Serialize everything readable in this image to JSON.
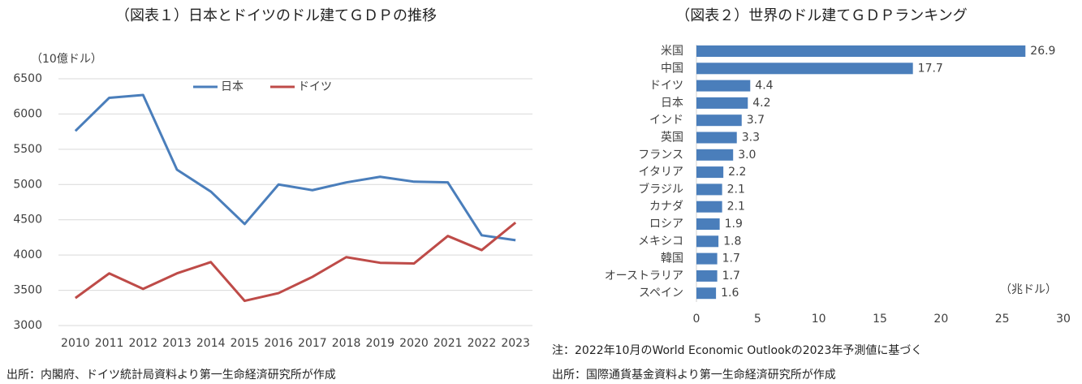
{
  "chart_data": [
    {
      "type": "line",
      "title": "（図表１）日本とドイツのドル建てＧＤＰの推移",
      "y_label": "（10億ドル）",
      "categories": [
        "2010",
        "2011",
        "2012",
        "2013",
        "2014",
        "2015",
        "2016",
        "2017",
        "2018",
        "2019",
        "2020",
        "2021",
        "2022",
        "2023"
      ],
      "series": [
        {
          "name": "日本",
          "color": "#4a7ebb",
          "values": [
            5760,
            6230,
            6270,
            5210,
            4900,
            4440,
            5000,
            4920,
            5030,
            5110,
            5040,
            5030,
            4280,
            4210
          ]
        },
        {
          "name": "ドイツ",
          "color": "#be4b48",
          "values": [
            3390,
            3740,
            3520,
            3740,
            3900,
            3350,
            3460,
            3690,
            3970,
            3890,
            3880,
            4270,
            4070,
            4460
          ]
        }
      ],
      "ylim": [
        3000,
        6500
      ],
      "yticks": [
        3000,
        3500,
        4000,
        4500,
        5000,
        5500,
        6000,
        6500
      ],
      "grid": true,
      "legend": "top",
      "source": "出所：内閣府、ドイツ統計局資料より第一生命経済研究所が作成"
    },
    {
      "type": "hbar",
      "title": "（図表２）世界のドル建てＧＤＰランキング",
      "x_label": "（兆ドル）",
      "categories": [
        "米国",
        "中国",
        "ドイツ",
        "日本",
        "インド",
        "英国",
        "フランス",
        "イタリア",
        "ブラジル",
        "カナダ",
        "ロシア",
        "メキシコ",
        "韓国",
        "オーストラリア",
        "スペイン"
      ],
      "values": [
        26.9,
        17.7,
        4.4,
        4.2,
        3.7,
        3.3,
        3.0,
        2.2,
        2.1,
        2.1,
        1.9,
        1.8,
        1.7,
        1.7,
        1.6
      ],
      "value_labels": [
        "26.9",
        "17.7",
        "4.4",
        "4.2",
        "3.7",
        "3.3",
        "3.0",
        "2.2",
        "2.1",
        "2.1",
        "1.9",
        "1.8",
        "1.7",
        "1.7",
        "1.6"
      ],
      "color": "#4a7ebb",
      "xlim": [
        0,
        30
      ],
      "xticks": [
        0,
        5,
        10,
        15,
        20,
        25,
        30
      ],
      "grid": false,
      "note": "注：2022年10月のWorld Economic Outlookの2023年予測値に基づく",
      "source": "出所：国際通貨基金資料より第一生命経済研究所が作成"
    }
  ]
}
